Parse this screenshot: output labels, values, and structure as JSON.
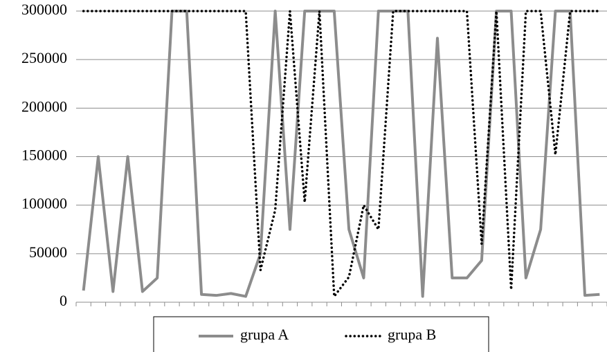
{
  "chart_data": {
    "type": "line",
    "categories": [
      null,
      null,
      null,
      null,
      null,
      null,
      null,
      null,
      null,
      null,
      null,
      null,
      null,
      null,
      null,
      null,
      null,
      null,
      null,
      null,
      null,
      null,
      null,
      null,
      null,
      null,
      null,
      null,
      null,
      null,
      null,
      null,
      null,
      null,
      null,
      null
    ],
    "series": [
      {
        "name": "grupa A",
        "color": "#8c8c8c",
        "dash": false,
        "values": [
          12000,
          150000,
          11000,
          150000,
          11000,
          25000,
          300000,
          300000,
          8000,
          7000,
          9000,
          6000,
          50000,
          300000,
          75000,
          300000,
          300000,
          300000,
          75000,
          25000,
          300000,
          300000,
          300000,
          6000,
          272000,
          25000,
          25000,
          43000,
          300000,
          300000,
          25000,
          75000,
          300000,
          300000,
          7000,
          8000
        ]
      },
      {
        "name": "grupa B",
        "color": "#000000",
        "dash": true,
        "values": [
          300000,
          300000,
          300000,
          300000,
          300000,
          300000,
          300000,
          300000,
          300000,
          300000,
          300000,
          300000,
          33000,
          95000,
          300000,
          103000,
          300000,
          6000,
          26000,
          100000,
          75000,
          300000,
          300000,
          300000,
          300000,
          300000,
          300000,
          60000,
          300000,
          13000,
          300000,
          300000,
          152000,
          300000,
          300000,
          300000
        ]
      }
    ],
    "ylim": [
      0,
      300000
    ],
    "yticks": [
      0,
      50000,
      100000,
      150000,
      200000,
      250000,
      300000
    ],
    "grid": true
  }
}
